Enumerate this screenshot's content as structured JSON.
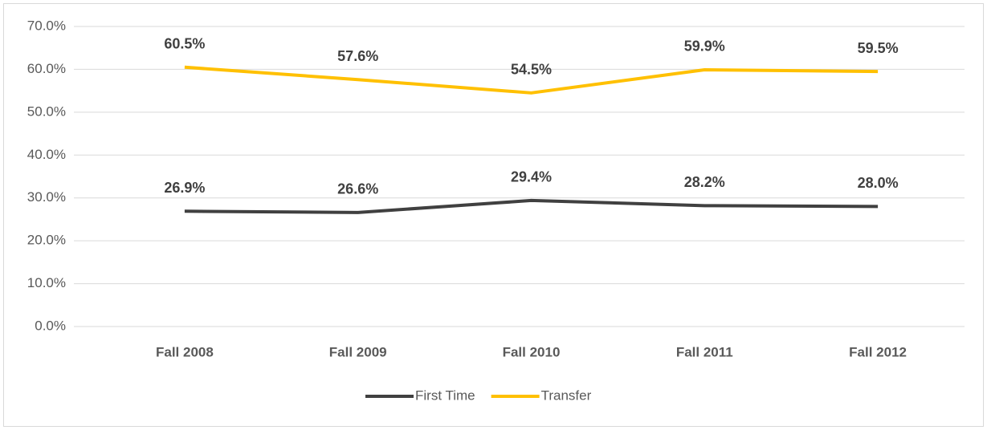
{
  "chart_data": {
    "type": "line",
    "categories": [
      "Fall 2008",
      "Fall 2009",
      "Fall 2010",
      "Fall 2011",
      "Fall 2012"
    ],
    "series": [
      {
        "name": "First Time",
        "color": "#404040",
        "values": [
          26.9,
          26.6,
          29.4,
          28.2,
          28.0
        ],
        "value_labels": [
          "26.9%",
          "26.6%",
          "29.4%",
          "28.2%",
          "28.0%"
        ]
      },
      {
        "name": "Transfer",
        "color": "#ffc000",
        "values": [
          60.5,
          57.6,
          54.5,
          59.9,
          59.5
        ],
        "value_labels": [
          "60.5%",
          "57.6%",
          "54.5%",
          "59.9%",
          "59.5%"
        ]
      }
    ],
    "ylim": [
      0,
      70
    ],
    "yticks": [
      {
        "value": 0,
        "label": "0.0%"
      },
      {
        "value": 10,
        "label": "10.0%"
      },
      {
        "value": 20,
        "label": "20.0%"
      },
      {
        "value": 30,
        "label": "30.0%"
      },
      {
        "value": 40,
        "label": "40.0%"
      },
      {
        "value": 50,
        "label": "50.0%"
      },
      {
        "value": 60,
        "label": "60.0%"
      },
      {
        "value": 70,
        "label": "70.0%"
      }
    ],
    "grid": true,
    "legend": "bottom"
  }
}
